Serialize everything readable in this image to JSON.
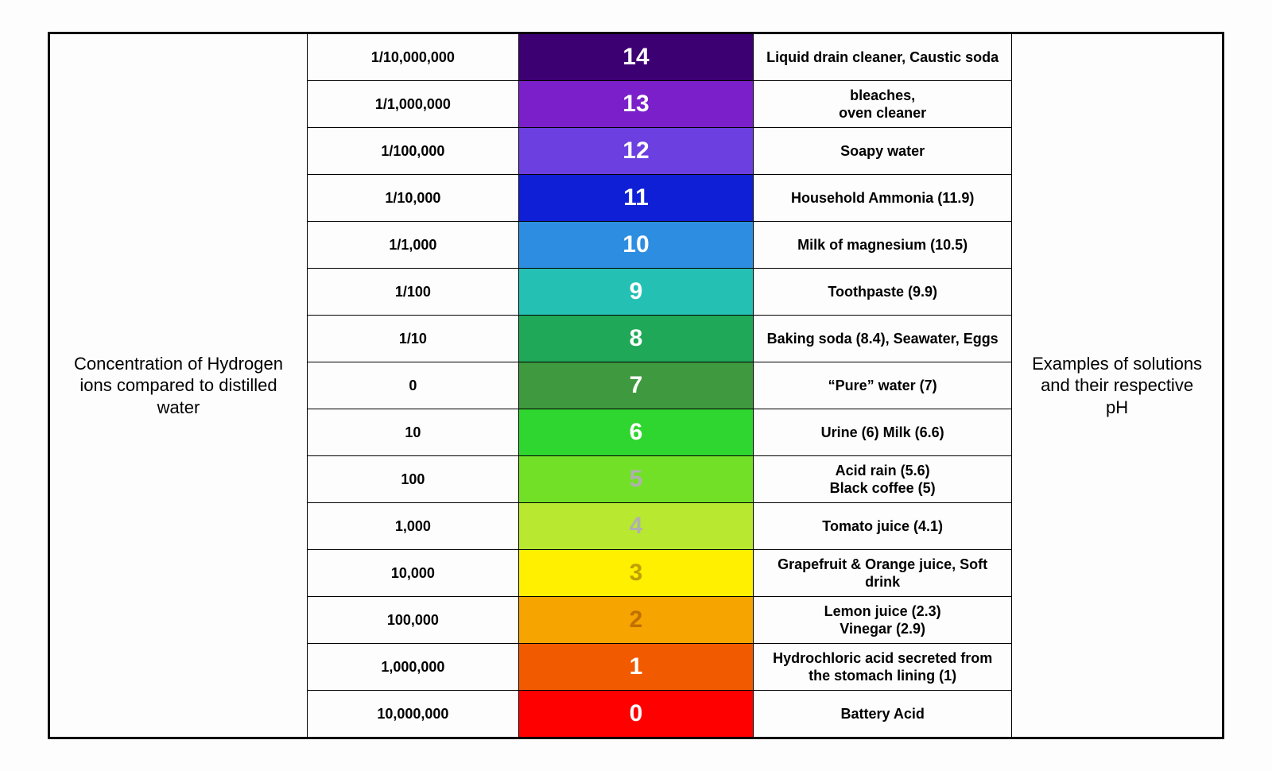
{
  "left_label": "Concentration of Hydrogen ions compared to distilled water",
  "right_label": "Examples of solutions and their respective pH",
  "background_color": "#fdfdfd",
  "border_color": "#000000",
  "ph_font_size": 30,
  "label_font_size": 22,
  "cell_font_size": 18,
  "rows": [
    {
      "concentration": "1/10,000,000",
      "ph": "14",
      "ph_bg": "#3d0073",
      "ph_text": "#ffffff",
      "example": "Liquid drain cleaner, Caustic soda"
    },
    {
      "concentration": "1/1,000,000",
      "ph": "13",
      "ph_bg": "#7a1fc9",
      "ph_text": "#ffffff",
      "example": "bleaches,\noven cleaner"
    },
    {
      "concentration": "1/100,000",
      "ph": "12",
      "ph_bg": "#6b3fe0",
      "ph_text": "#ffffff",
      "example": "Soapy water"
    },
    {
      "concentration": "1/10,000",
      "ph": "11",
      "ph_bg": "#0f1fd6",
      "ph_text": "#ffffff",
      "example": "Household Ammonia (11.9)"
    },
    {
      "concentration": "1/1,000",
      "ph": "10",
      "ph_bg": "#2d8de0",
      "ph_text": "#ffffff",
      "example": "Milk of magnesium (10.5)"
    },
    {
      "concentration": "1/100",
      "ph": "9",
      "ph_bg": "#24c0b4",
      "ph_text": "#ffffff",
      "example": "Toothpaste (9.9)"
    },
    {
      "concentration": "1/10",
      "ph": "8",
      "ph_bg": "#1fa857",
      "ph_text": "#ffffff",
      "example": "Baking soda (8.4), Seawater, Eggs"
    },
    {
      "concentration": "0",
      "ph": "7",
      "ph_bg": "#3f9a3f",
      "ph_text": "#ffffff",
      "example": "“Pure” water (7)"
    },
    {
      "concentration": "10",
      "ph": "6",
      "ph_bg": "#2fd62f",
      "ph_text": "#ffffff",
      "example": "Urine (6) Milk (6.6)"
    },
    {
      "concentration": "100",
      "ph": "5",
      "ph_bg": "#73e028",
      "ph_text": "#b0b0b0",
      "example": "Acid rain (5.6)\nBlack coffee (5)"
    },
    {
      "concentration": "1,000",
      "ph": "4",
      "ph_bg": "#b8e830",
      "ph_text": "#b0b0b0",
      "example": "Tomato juice (4.1)"
    },
    {
      "concentration": "10,000",
      "ph": "3",
      "ph_bg": "#fff000",
      "ph_text": "#c0a000",
      "example": "Grapefruit & Orange juice, Soft drink"
    },
    {
      "concentration": "100,000",
      "ph": "2",
      "ph_bg": "#f5a400",
      "ph_text": "#c07000",
      "example": "Lemon juice (2.3)\nVinegar (2.9)"
    },
    {
      "concentration": "1,000,000",
      "ph": "1",
      "ph_bg": "#f25a00",
      "ph_text": "#ffffff",
      "example": "Hydrochloric acid secreted from the stomach lining (1)"
    },
    {
      "concentration": "10,000,000",
      "ph": "0",
      "ph_bg": "#ff0000",
      "ph_text": "#ffffff",
      "example": "Battery Acid"
    }
  ]
}
